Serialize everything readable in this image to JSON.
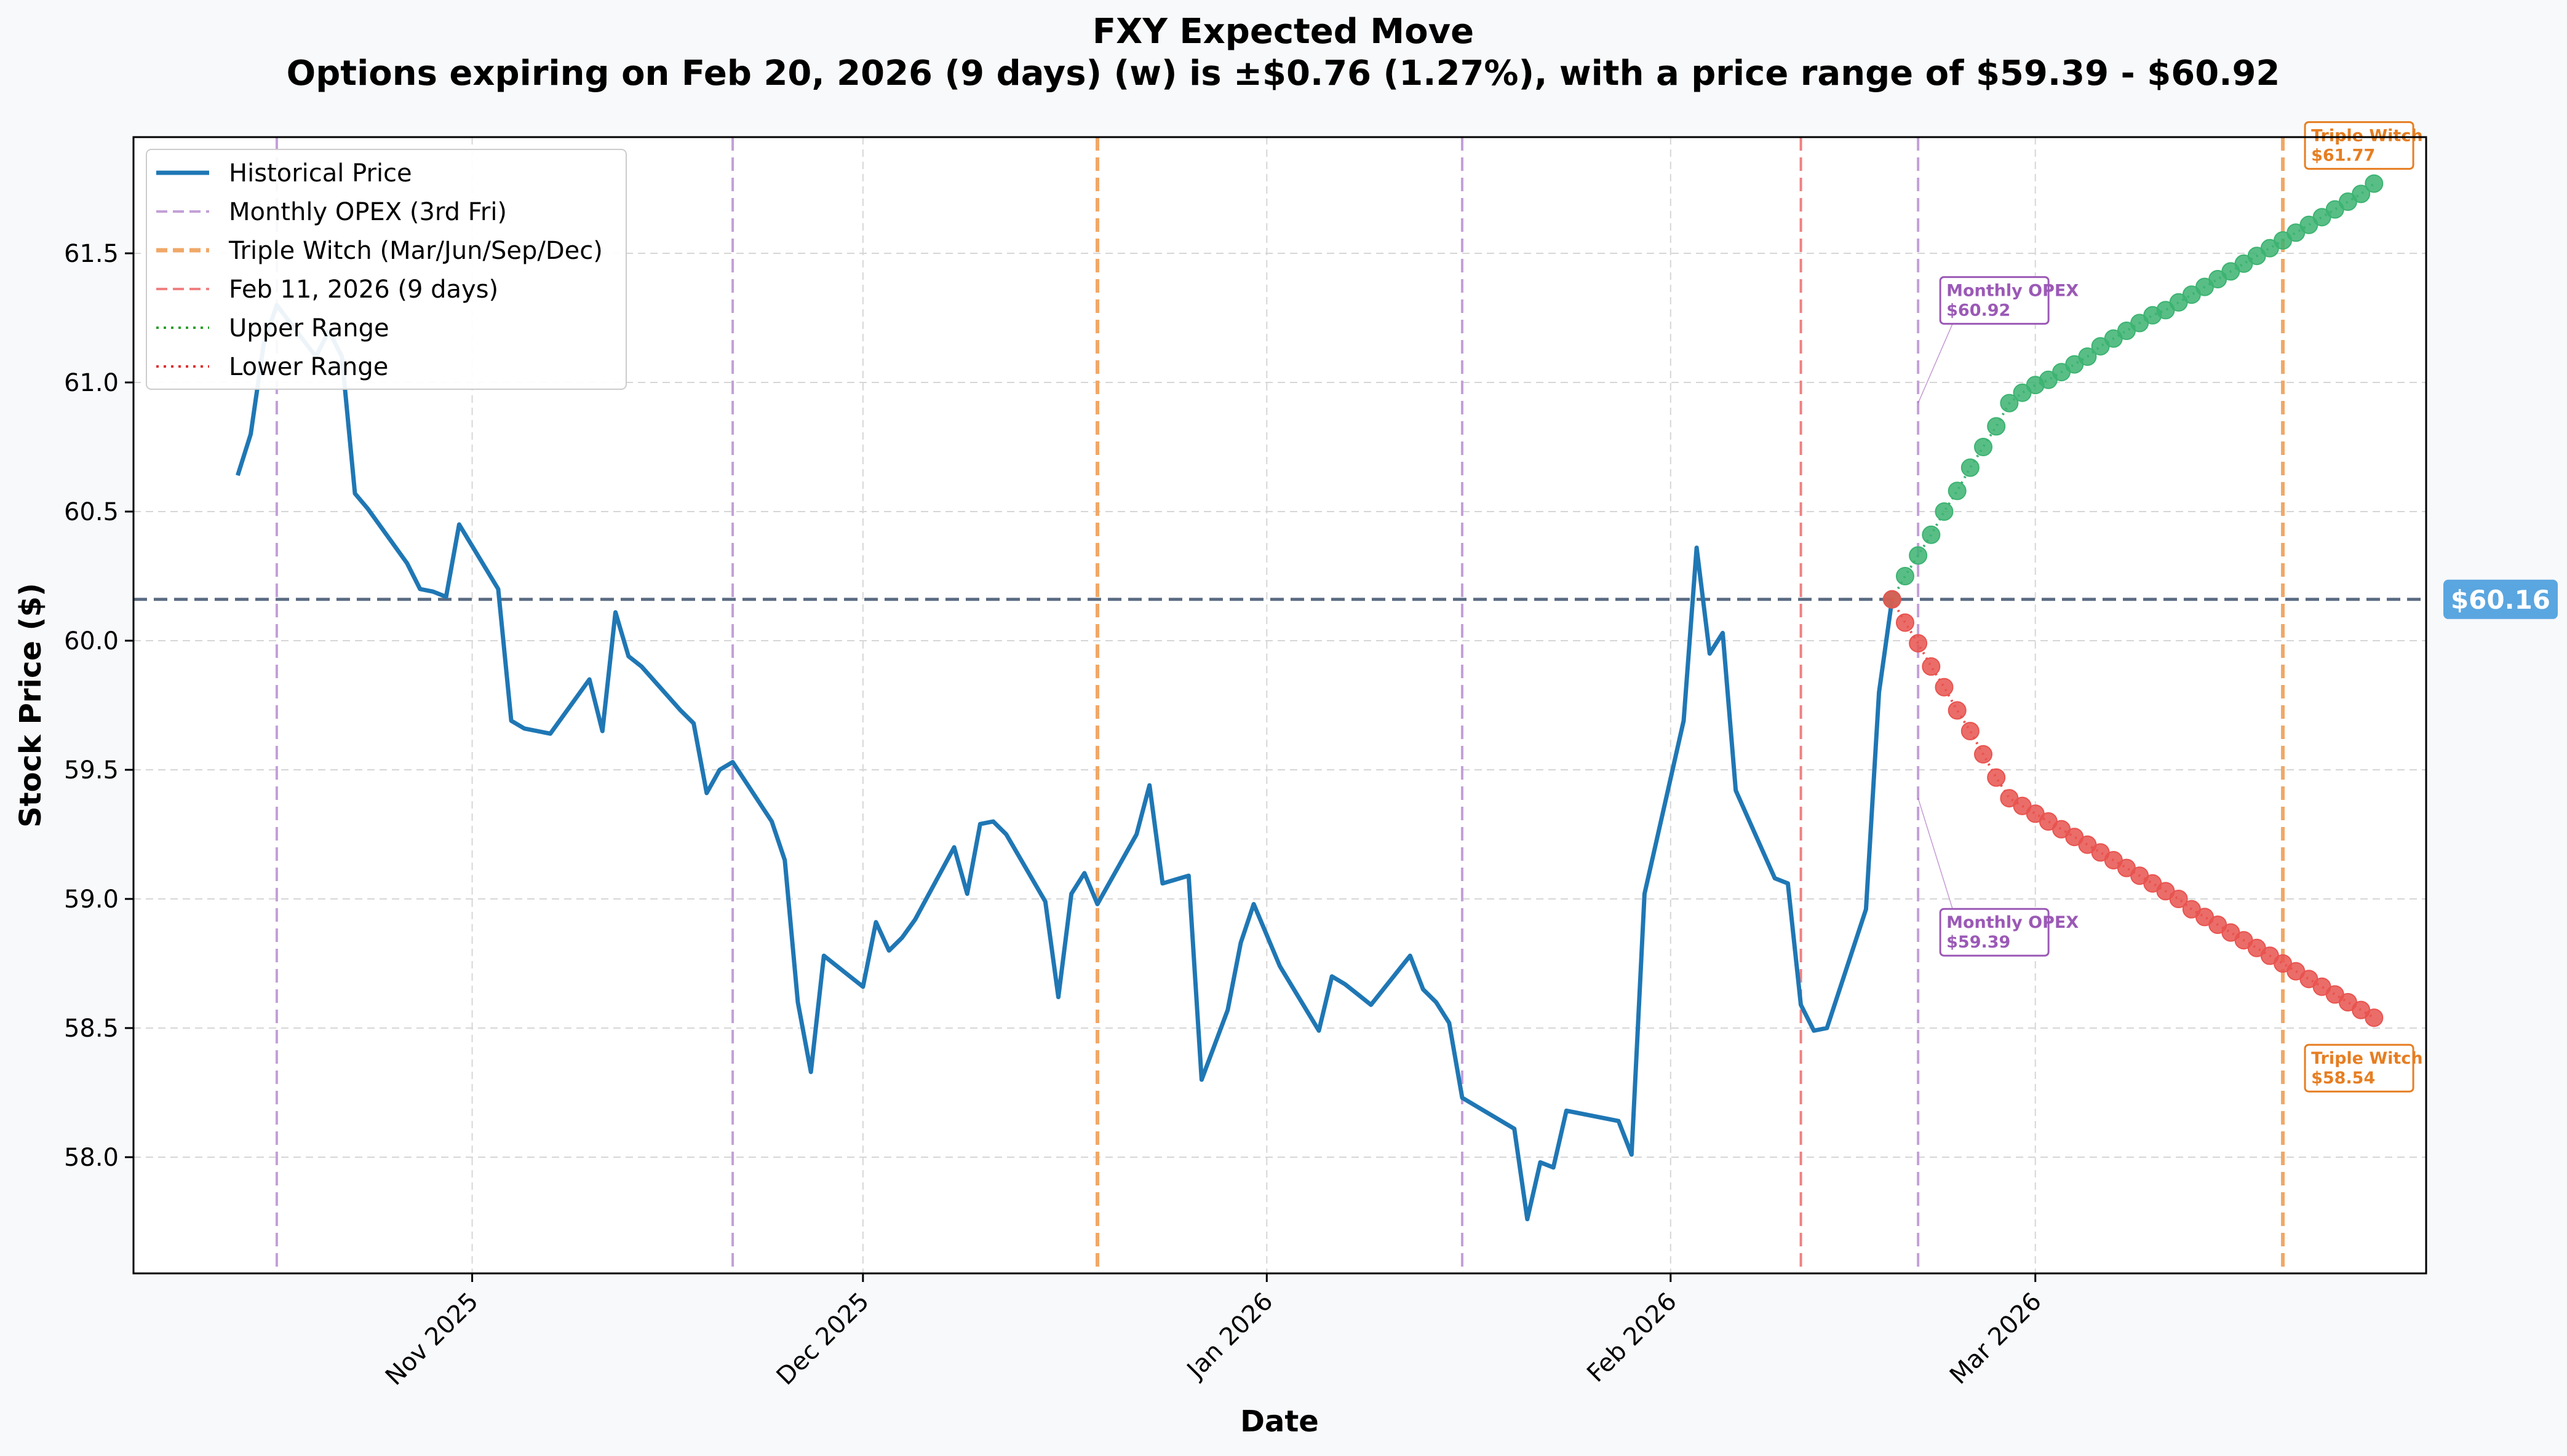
{
  "chart_data": {
    "type": "line",
    "title": "FXY Expected Move",
    "subtitle": "Options expiring on Feb 20, 2026 (9 days) (w) is ±$0.76 (1.27%), with a price range of $59.39 - $60.92",
    "xlabel": "Date",
    "ylabel": "Stock Price ($)",
    "ylim": [
      57.55,
      61.95
    ],
    "xlim": [
      "2025-10-06",
      "2026-03-31"
    ],
    "grid": true,
    "legend_position": "top-left",
    "x_ticks": [
      {
        "date": "2025-11-01",
        "label": "Nov 2025"
      },
      {
        "date": "2025-12-01",
        "label": "Dec 2025"
      },
      {
        "date": "2026-01-01",
        "label": "Jan 2026"
      },
      {
        "date": "2026-02-01",
        "label": "Feb 2026"
      },
      {
        "date": "2026-03-01",
        "label": "Mar 2026"
      }
    ],
    "y_ticks": [
      {
        "value": 58.0,
        "label": "58.0"
      },
      {
        "value": 58.5,
        "label": "58.5"
      },
      {
        "value": 59.0,
        "label": "59.0"
      },
      {
        "value": 59.5,
        "label": "59.5"
      },
      {
        "value": 60.0,
        "label": "60.0"
      },
      {
        "value": 60.5,
        "label": "60.5"
      },
      {
        "value": 61.0,
        "label": "61.0"
      },
      {
        "value": 61.5,
        "label": "61.5"
      }
    ],
    "legend": [
      {
        "label": "Historical Price",
        "color": "#1f77b4",
        "style": "solid"
      },
      {
        "label": "Monthly OPEX (3rd Fri)",
        "color": "#c3a0d8",
        "style": "dashed"
      },
      {
        "label": "Triple Witch (Mar/Jun/Sep/Dec)",
        "color": "#f0a868",
        "style": "dashed"
      },
      {
        "label": "Feb 11, 2026 (9 days)",
        "color": "#f08080",
        "style": "dashed"
      },
      {
        "label": "Upper Range",
        "color": "#2ca02c",
        "style": "dotted"
      },
      {
        "label": "Lower Range",
        "color": "#e03030",
        "style": "dotted"
      }
    ],
    "historical": {
      "name": "Historical Price",
      "color": "#1f77b4",
      "points": [
        [
          "2025-10-14",
          60.64
        ],
        [
          "2025-10-15",
          60.8
        ],
        [
          "2025-10-16",
          61.15
        ],
        [
          "2025-10-17",
          61.3
        ],
        [
          "2025-10-20",
          61.1
        ],
        [
          "2025-10-21",
          61.2
        ],
        [
          "2025-10-22",
          61.1
        ],
        [
          "2025-10-23",
          60.57
        ],
        [
          "2025-10-24",
          60.51
        ],
        [
          "2025-10-27",
          60.3
        ],
        [
          "2025-10-28",
          60.2
        ],
        [
          "2025-10-29",
          60.19
        ],
        [
          "2025-10-30",
          60.17
        ],
        [
          "2025-10-31",
          60.45
        ],
        [
          "2025-11-03",
          60.2
        ],
        [
          "2025-11-04",
          59.69
        ],
        [
          "2025-11-05",
          59.66
        ],
        [
          "2025-11-06",
          59.65
        ],
        [
          "2025-11-07",
          59.64
        ],
        [
          "2025-11-10",
          59.85
        ],
        [
          "2025-11-11",
          59.65
        ],
        [
          "2025-11-12",
          60.11
        ],
        [
          "2025-11-13",
          59.94
        ],
        [
          "2025-11-14",
          59.9
        ],
        [
          "2025-11-17",
          59.73
        ],
        [
          "2025-11-18",
          59.68
        ],
        [
          "2025-11-19",
          59.41
        ],
        [
          "2025-11-20",
          59.5
        ],
        [
          "2025-11-21",
          59.53
        ],
        [
          "2025-11-24",
          59.3
        ],
        [
          "2025-11-25",
          59.15
        ],
        [
          "2025-11-26",
          58.6
        ],
        [
          "2025-11-27",
          58.33
        ],
        [
          "2025-11-28",
          58.78
        ],
        [
          "2025-12-01",
          58.66
        ],
        [
          "2025-12-02",
          58.91
        ],
        [
          "2025-12-03",
          58.8
        ],
        [
          "2025-12-04",
          58.85
        ],
        [
          "2025-12-05",
          58.92
        ],
        [
          "2025-12-08",
          59.2
        ],
        [
          "2025-12-09",
          59.02
        ],
        [
          "2025-12-10",
          59.29
        ],
        [
          "2025-12-11",
          59.3
        ],
        [
          "2025-12-12",
          59.25
        ],
        [
          "2025-12-15",
          58.99
        ],
        [
          "2025-12-16",
          58.62
        ],
        [
          "2025-12-17",
          59.02
        ],
        [
          "2025-12-18",
          59.1
        ],
        [
          "2025-12-19",
          58.98
        ],
        [
          "2025-12-22",
          59.25
        ],
        [
          "2025-12-23",
          59.44
        ],
        [
          "2025-12-24",
          59.06
        ],
        [
          "2025-12-26",
          59.09
        ],
        [
          "2025-12-27",
          58.3
        ],
        [
          "2025-12-29",
          58.57
        ],
        [
          "2025-12-30",
          58.83
        ],
        [
          "2025-12-31",
          58.98
        ],
        [
          "2026-01-02",
          58.74
        ],
        [
          "2026-01-05",
          58.49
        ],
        [
          "2026-01-06",
          58.7
        ],
        [
          "2026-01-07",
          58.67
        ],
        [
          "2026-01-08",
          58.63
        ],
        [
          "2026-01-09",
          58.59
        ],
        [
          "2026-01-12",
          58.78
        ],
        [
          "2026-01-13",
          58.65
        ],
        [
          "2026-01-14",
          58.6
        ],
        [
          "2026-01-15",
          58.52
        ],
        [
          "2026-01-16",
          58.23
        ],
        [
          "2026-01-20",
          58.11
        ],
        [
          "2026-01-21",
          57.76
        ],
        [
          "2026-01-22",
          57.98
        ],
        [
          "2026-01-23",
          57.96
        ],
        [
          "2026-01-24",
          58.18
        ],
        [
          "2026-01-28",
          58.14
        ],
        [
          "2026-01-29",
          58.01
        ],
        [
          "2026-01-30",
          59.02
        ],
        [
          "2026-02-02",
          59.69
        ],
        [
          "2026-02-03",
          60.36
        ],
        [
          "2026-02-04",
          59.95
        ],
        [
          "2026-02-05",
          60.03
        ],
        [
          "2026-02-06",
          59.42
        ],
        [
          "2026-02-09",
          59.08
        ],
        [
          "2026-02-10",
          59.06
        ],
        [
          "2026-02-11",
          58.59
        ],
        [
          "2026-02-12",
          58.49
        ],
        [
          "2026-02-13",
          58.5
        ],
        [
          "2026-02-16",
          58.96
        ],
        [
          "2026-02-17",
          59.8
        ],
        [
          "2026-02-18",
          60.16
        ]
      ]
    },
    "upper_range": {
      "name": "Upper Range",
      "color": "#3cb371",
      "start": "2026-02-18",
      "values": [
        60.16,
        60.25,
        60.33,
        60.41,
        60.5,
        60.58,
        60.67,
        60.75,
        60.83,
        60.92,
        60.96,
        60.99,
        61.01,
        61.04,
        61.07,
        61.1,
        61.14,
        61.17,
        61.2,
        61.23,
        61.26,
        61.28,
        61.31,
        61.34,
        61.37,
        61.4,
        61.43,
        61.46,
        61.49,
        61.52,
        61.55,
        61.58,
        61.61,
        61.64,
        61.67,
        61.7,
        61.73,
        61.77
      ]
    },
    "lower_range": {
      "name": "Lower Range",
      "color": "#e8534f",
      "start": "2026-02-18",
      "values": [
        60.16,
        60.07,
        59.99,
        59.9,
        59.82,
        59.73,
        59.65,
        59.56,
        59.47,
        59.39,
        59.36,
        59.33,
        59.3,
        59.27,
        59.24,
        59.21,
        59.18,
        59.15,
        59.12,
        59.09,
        59.06,
        59.03,
        59.0,
        58.96,
        58.93,
        58.9,
        58.87,
        58.84,
        58.81,
        58.78,
        58.75,
        58.72,
        58.69,
        58.66,
        58.63,
        58.6,
        58.57,
        58.54
      ]
    },
    "current_price": {
      "value": 60.16,
      "label": "$60.16",
      "color": "#5a6b82",
      "badge_color": "#5aa6e0"
    },
    "vertical_lines": [
      {
        "date": "2025-10-17",
        "kind": "monthly",
        "color": "#c3a0d8"
      },
      {
        "date": "2025-11-21",
        "kind": "monthly",
        "color": "#c3a0d8"
      },
      {
        "date": "2025-12-19",
        "kind": "triple",
        "color": "#f0a868"
      },
      {
        "date": "2026-01-16",
        "kind": "monthly",
        "color": "#c3a0d8"
      },
      {
        "date": "2026-02-11",
        "kind": "today",
        "color": "#f08080"
      },
      {
        "date": "2026-02-20",
        "kind": "monthly",
        "color": "#c3a0d8"
      },
      {
        "date": "2026-03-20",
        "kind": "triple",
        "color": "#f0a868"
      }
    ],
    "annotations": [
      {
        "title": "Monthly OPEX",
        "value": "$60.92",
        "color": "#9b59b6",
        "anchor_date": "2026-02-20",
        "anchor_value": 60.92,
        "placement": "above"
      },
      {
        "title": "Monthly OPEX",
        "value": "$59.39",
        "color": "#9b59b6",
        "anchor_date": "2026-02-20",
        "anchor_value": 59.39,
        "placement": "below"
      },
      {
        "title": "Triple Witch",
        "value": "$61.77",
        "color": "#e67e22",
        "anchor_date": "2026-03-20",
        "anchor_value": 61.77,
        "placement": "right-top"
      },
      {
        "title": "Triple Witch",
        "value": "$58.54",
        "color": "#e67e22",
        "anchor_date": "2026-03-20",
        "anchor_value": 58.54,
        "placement": "right-bottom"
      }
    ]
  }
}
